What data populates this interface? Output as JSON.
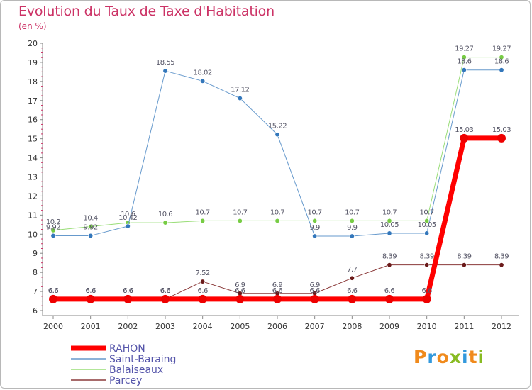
{
  "title": "Evolution du Taux de Taxe d'Habitation",
  "subtitle": "(en %)",
  "logo": {
    "letters": [
      {
        "ch": "P",
        "color": "#f08a1c"
      },
      {
        "ch": "r",
        "color": "#3399dd"
      },
      {
        "ch": "o",
        "color": "#f08a1c"
      },
      {
        "ch": "x",
        "color": "#88bb22"
      },
      {
        "ch": "i",
        "color": "#3399dd"
      },
      {
        "ch": "t",
        "color": "#f08a1c"
      },
      {
        "ch": "i",
        "color": "#88bb22"
      }
    ]
  },
  "chart_data": {
    "type": "line",
    "x": [
      "2000",
      "2001",
      "2002",
      "2003",
      "2004",
      "2005",
      "2006",
      "2007",
      "2008",
      "2009",
      "2010",
      "2011",
      "2012"
    ],
    "ylim": [
      6,
      20
    ],
    "yticks": [
      6,
      7,
      8,
      9,
      10,
      11,
      12,
      13,
      14,
      15,
      16,
      17,
      18,
      19,
      20
    ],
    "grid": false,
    "legend_position": "bottom-left",
    "series": [
      {
        "name": "Parcey",
        "color": "#8b3a3a",
        "point_color": "#6b1a1a",
        "width": 1,
        "values": [
          6.6,
          6.6,
          6.6,
          6.6,
          7.52,
          6.9,
          6.9,
          6.9,
          7.7,
          8.39,
          8.39,
          8.39,
          8.39
        ],
        "labels": [
          "6.6",
          "6.6",
          "6.6",
          "6.6",
          "7.52",
          "6.9",
          "6.9",
          "6.9",
          "7.7",
          "8.39",
          "8.39",
          "8.39",
          "8.39"
        ]
      },
      {
        "name": "Balaiseaux",
        "color": "#99dd77",
        "point_color": "#77cc44",
        "width": 1,
        "values": [
          10.2,
          10.4,
          10.6,
          10.6,
          10.7,
          10.7,
          10.7,
          10.7,
          10.7,
          10.7,
          10.7,
          19.27,
          19.27
        ],
        "labels": [
          "10.2",
          "10.4",
          "10.6",
          "10.6",
          "10.7",
          "10.7",
          "10.7",
          "10.7",
          "10.7",
          "10.7",
          "10.7",
          "19.27",
          "19.27"
        ]
      },
      {
        "name": "Saint-Baraing",
        "color": "#6699cc",
        "point_color": "#3377bb",
        "width": 1,
        "values": [
          9.92,
          9.92,
          10.42,
          18.55,
          18.02,
          17.12,
          15.22,
          9.9,
          9.9,
          10.05,
          10.05,
          18.6,
          18.6
        ],
        "labels": [
          "9.92",
          "9.92",
          "10.42",
          "18.55",
          "18.02",
          "17.12",
          "15.22",
          "9.9",
          "9.9",
          "10.05",
          "10.05",
          "18.6",
          "18.6"
        ]
      },
      {
        "name": "RAHON",
        "color": "#ff0000",
        "point_color": "#ee0000",
        "width": 7,
        "values": [
          6.6,
          6.6,
          6.6,
          6.6,
          6.6,
          6.6,
          6.6,
          6.6,
          6.6,
          6.6,
          6.6,
          15.03,
          15.03
        ],
        "labels": [
          "6.6",
          "6.6",
          "6.6",
          "6.6",
          "6.6",
          "6.6",
          "6.6",
          "6.6",
          "6.6",
          "6.6",
          "6.6",
          "15.03",
          "15.03"
        ]
      }
    ],
    "legend_order": [
      "RAHON",
      "Saint-Baraing",
      "Balaiseaux",
      "Parcey"
    ]
  }
}
